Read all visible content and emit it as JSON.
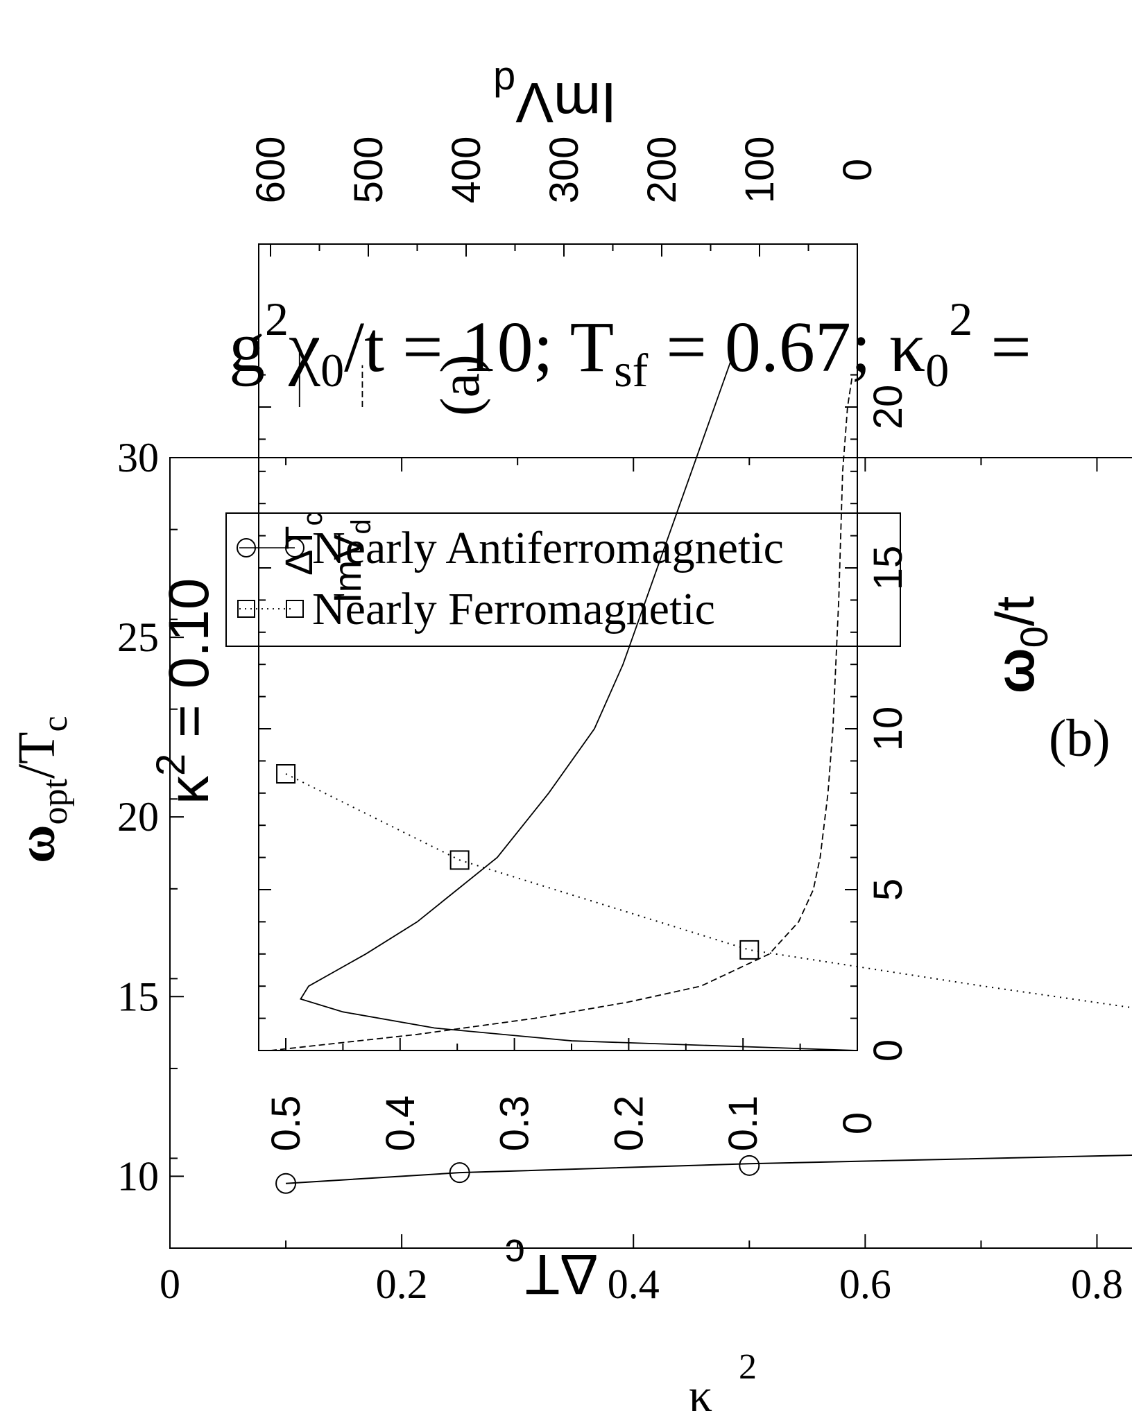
{
  "chart_data": [
    {
      "id": "main",
      "panel_label": "(b)",
      "type": "line",
      "xlabel": "κ",
      "xlabel_sup": "2",
      "ylabel_main": "ω",
      "ylabel_sub": "opt",
      "ylabel_mid": "/T",
      "ylabel_sub2": "c",
      "title_parts": [
        "g",
        "2",
        "χ",
        "0",
        "/t = 10; T",
        "sf",
        " = 0.67; κ",
        "0",
        "2",
        " ="
      ],
      "xlim": [
        0,
        0.85
      ],
      "ylim": [
        8,
        30
      ],
      "x_ticks": [
        0,
        0.2,
        0.4,
        0.6,
        0.8
      ],
      "x_tick_labels": [
        "0",
        "0.2",
        "0.4",
        "0.6",
        "0.8"
      ],
      "y_ticks": [
        10,
        15,
        20,
        25,
        30
      ],
      "y_tick_labels": [
        "10",
        "15",
        "20",
        "25",
        "30"
      ],
      "legend": [
        "Nearly Antiferromagnetic",
        "Nearly Ferromagnetic"
      ],
      "series": [
        {
          "name": "Nearly Antiferromagnetic",
          "marker": "circle",
          "line": "solid",
          "points": [
            [
              0.1,
              9.8
            ],
            [
              0.25,
              10.1
            ],
            [
              0.5,
              10.3
            ]
          ],
          "line_x": [
            0.1,
            0.25,
            0.5,
            0.85
          ],
          "line_y": [
            9.8,
            10.1,
            10.35,
            10.6
          ]
        },
        {
          "name": "Nearly Ferromagnetic",
          "marker": "square",
          "line": "dotted",
          "points": [
            [
              0.1,
              21.2
            ],
            [
              0.25,
              18.8
            ],
            [
              0.5,
              16.3
            ]
          ],
          "line_x": [
            0.1,
            0.25,
            0.5,
            0.6,
            0.7,
            0.85
          ],
          "line_y": [
            21.2,
            18.8,
            16.3,
            15.8,
            15.3,
            14.6
          ]
        }
      ]
    },
    {
      "id": "inset",
      "panel_label": "(a)",
      "type": "line",
      "orientation": "rotated 90° clockwise",
      "inset_title": "κ",
      "inset_title_sup": "2",
      "inset_title_rest": " = 0.10",
      "x_axis_label_top": "ImV",
      "x_axis_label_top_sub": "d",
      "x_axis_label_bottom": "ΔT",
      "x_axis_label_bottom_sub": "c",
      "y_axis_label": "ω",
      "y_axis_label_sub": "0",
      "y_axis_label_rest": "/t",
      "legend_overlap_labels": [
        "ΔT",
        "c",
        "ImV",
        "d"
      ],
      "omega_lim": [
        0,
        20
      ],
      "omega_ticks": [
        0,
        5,
        10,
        15,
        20
      ],
      "omega_tick_labels": [
        "0",
        "5",
        "10",
        "15",
        "20"
      ],
      "dTc_lim": [
        0,
        0.5
      ],
      "dTc_ticks": [
        0,
        0.1,
        0.2,
        0.3,
        0.4,
        0.5
      ],
      "dTc_tick_labels": [
        "0",
        "0.1",
        "0.2",
        "0.3",
        "0.4",
        "0.5"
      ],
      "ImVd_lim": [
        0,
        600
      ],
      "ImVd_ticks": [
        0,
        100,
        200,
        300,
        400,
        500,
        600
      ],
      "ImVd_tick_labels": [
        "0",
        "100",
        "200",
        "300",
        "400",
        "500",
        "600"
      ],
      "series": [
        {
          "name": "ΔT_c",
          "line": "solid",
          "omega": [
            0.0,
            0.3,
            0.7,
            1.2,
            1.6,
            2.0,
            2.5,
            3.0,
            4.0,
            5.0,
            6.0,
            8.0,
            10.0,
            12.0,
            14.0,
            16.0,
            18.0,
            20.0,
            21.5
          ],
          "dTc": [
            0.0,
            0.25,
            0.37,
            0.45,
            0.487,
            0.48,
            0.455,
            0.43,
            0.385,
            0.35,
            0.315,
            0.27,
            0.23,
            0.205,
            0.185,
            0.165,
            0.145,
            0.125,
            0.11
          ]
        },
        {
          "name": "ImV_d",
          "line": "dashed",
          "omega": [
            0.0,
            0.5,
            1.0,
            1.5,
            2.0,
            3.0,
            4.0,
            5.0,
            6.0,
            8.0,
            10.0,
            12.0,
            14.0,
            16.0,
            18.0,
            20.0,
            21.0
          ],
          "ImVd": [
            600,
            450,
            330,
            235,
            160,
            90,
            60,
            45,
            38,
            30,
            25,
            22,
            19,
            17,
            15,
            10,
            5
          ]
        }
      ],
      "vertical_segments": [
        {
          "line": "solid",
          "dTc": 0.488,
          "omega_from": 20.0,
          "omega_to": 21.8
        },
        {
          "line": "dashed",
          "dTc": 0.433,
          "omega_from": 20.0,
          "omega_to": 21.3
        }
      ]
    }
  ]
}
